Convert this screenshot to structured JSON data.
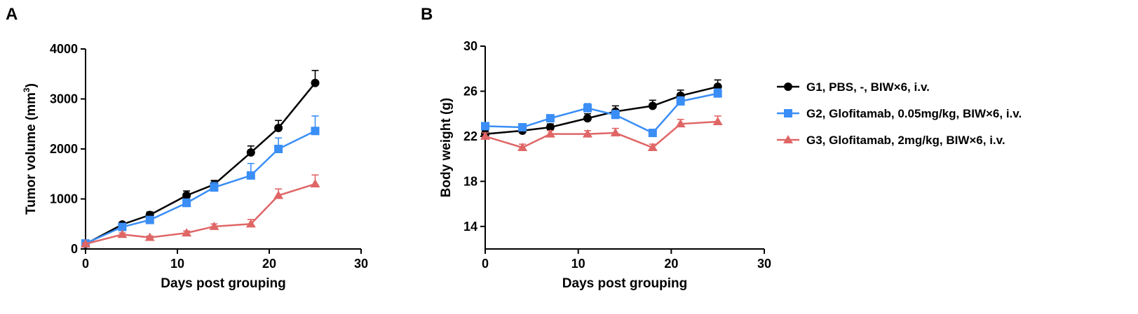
{
  "chart_data": [
    {
      "panel": "A",
      "type": "line",
      "xlabel": "Days post grouping",
      "ylabel": "Tumor volume (mm",
      "ylabel_sup": "3",
      "ylabel_close": ")",
      "xlim": [
        0,
        30
      ],
      "ylim": [
        0,
        4000
      ],
      "xticks": [
        0,
        10,
        20,
        30
      ],
      "yticks": [
        0,
        1000,
        2000,
        3000,
        4000
      ],
      "grid": false,
      "series": [
        {
          "name": "G1, PBS, -, BIW×6, i.v.",
          "color": "#000000",
          "marker": "circle",
          "x": [
            0,
            4,
            7,
            11,
            14,
            18,
            21,
            25
          ],
          "y": [
            100,
            490,
            680,
            1070,
            1290,
            1930,
            2420,
            3320
          ],
          "err": [
            20,
            40,
            60,
            90,
            80,
            130,
            150,
            250
          ]
        },
        {
          "name": "G2, Glofitamab, 0.05mg/kg, BIW×6, i.v.",
          "color": "#3a8ef6",
          "marker": "square",
          "x": [
            0,
            4,
            7,
            11,
            14,
            18,
            21,
            25
          ],
          "y": [
            110,
            440,
            580,
            920,
            1230,
            1470,
            2000,
            2360
          ],
          "err": [
            20,
            40,
            60,
            80,
            100,
            240,
            220,
            300
          ]
        },
        {
          "name": "G3, Glofitamab, 2mg/kg, BIW×6, i.v.",
          "color": "#e06666",
          "marker": "triangle",
          "x": [
            0,
            4,
            7,
            11,
            14,
            18,
            21,
            25
          ],
          "y": [
            100,
            290,
            230,
            320,
            450,
            500,
            1070,
            1300
          ],
          "err": [
            20,
            30,
            30,
            40,
            50,
            90,
            130,
            180
          ]
        }
      ]
    },
    {
      "panel": "B",
      "type": "line",
      "xlabel": "Days post grouping",
      "ylabel": "Body weight (g)",
      "xlim": [
        0,
        30
      ],
      "ylim": [
        12,
        30
      ],
      "xticks": [
        0,
        10,
        20,
        30
      ],
      "yticks": [
        14,
        18,
        22,
        26,
        30
      ],
      "grid": false,
      "legend_position": "right",
      "series": [
        {
          "name": "G1, PBS, -, BIW×6, i.v.",
          "color": "#000000",
          "marker": "circle",
          "x": [
            0,
            4,
            7,
            11,
            14,
            18,
            21,
            25
          ],
          "y": [
            22.2,
            22.5,
            22.8,
            23.6,
            24.2,
            24.7,
            25.6,
            26.4
          ],
          "err": [
            0.3,
            0.3,
            0.3,
            0.4,
            0.5,
            0.5,
            0.5,
            0.6
          ]
        },
        {
          "name": "G2, Glofitamab, 0.05mg/kg, BIW×6, i.v.",
          "color": "#3a8ef6",
          "marker": "square",
          "x": [
            0,
            4,
            7,
            11,
            14,
            18,
            21,
            25
          ],
          "y": [
            22.9,
            22.8,
            23.6,
            24.5,
            23.9,
            22.3,
            25.1,
            25.8
          ],
          "err": [
            0.3,
            0.3,
            0.3,
            0.4,
            0.4,
            0.3,
            0.4,
            0.4
          ]
        },
        {
          "name": "G3, Glofitamab, 2mg/kg, BIW×6, i.v.",
          "color": "#e06666",
          "marker": "triangle",
          "x": [
            0,
            4,
            7,
            11,
            14,
            18,
            21,
            25
          ],
          "y": [
            22.0,
            21.0,
            22.2,
            22.2,
            22.3,
            21.0,
            23.1,
            23.3
          ],
          "err": [
            0.3,
            0.3,
            0.3,
            0.3,
            0.4,
            0.3,
            0.4,
            0.5
          ]
        }
      ]
    }
  ]
}
